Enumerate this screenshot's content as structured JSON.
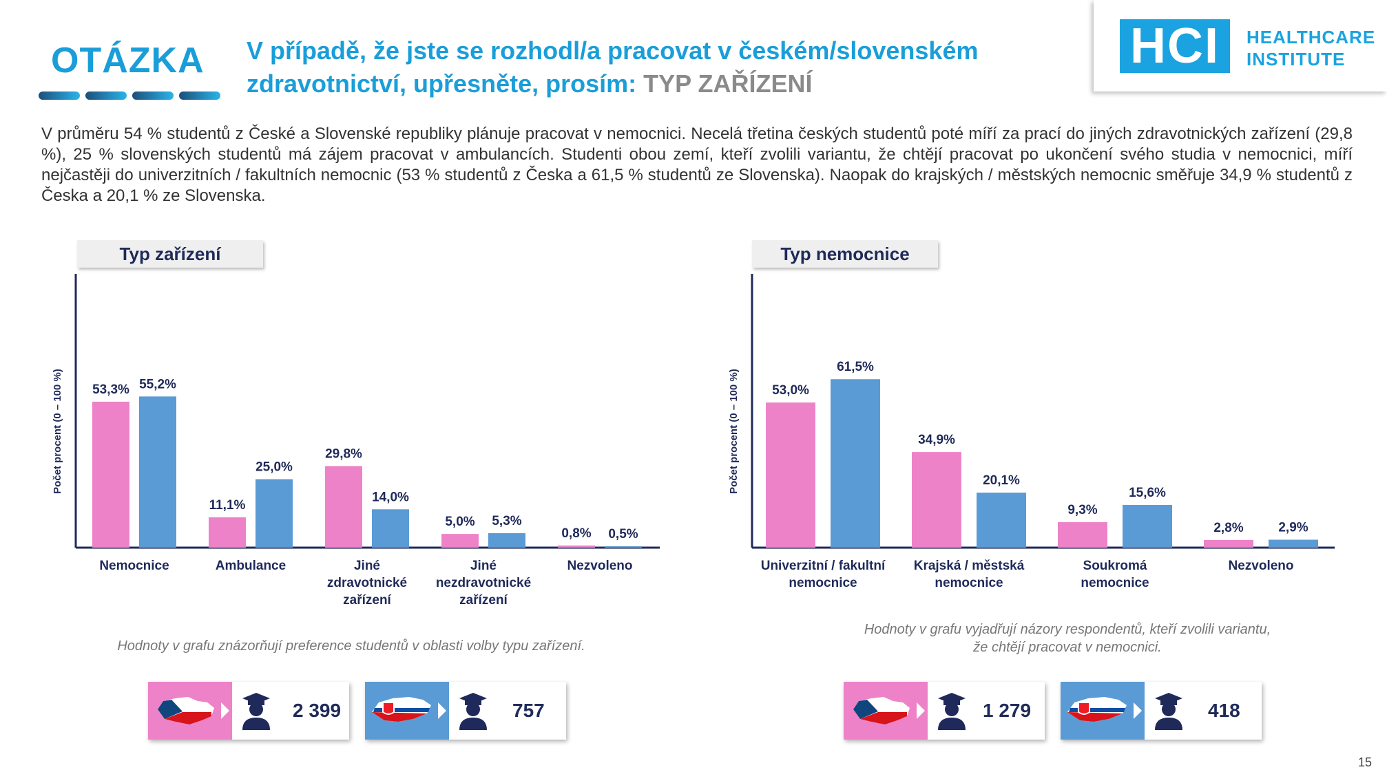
{
  "header": {
    "section_label": "OTÁZKA",
    "question_main": "V případě, že jste se rozhodl/a pracovat v českém/slovenském zdravotnictví, upřesněte, prosím:",
    "question_highlight": "TYP ZAŘÍZENÍ"
  },
  "logo": {
    "mark": "HCI",
    "line1": "HEALTHCARE",
    "line2": "INSTITUTE"
  },
  "intro": "V průměru 54 % studentů z České a Slovenské republiky plánuje pracovat v nemocnici. Necelá třetina českých studentů poté míří za prací do jiných zdravotnických zařízení (29,8 %), 25 % slovenských studentů má zájem pracovat v ambulancích. Studenti obou zemí, kteří zvolili variantu, že chtějí pracovat po ukončení svého studia v nemocnici, míří nejčastěji do univerzitních / fakultních nemocnic (53 % studentů z Česka a 61,5 % studentů ze Slovenska). Naopak do krajských / městských nemocnic směřuje 34,9 % studentů z Česka a 20,1 % ze Slovenska.",
  "colors": {
    "cz": "#ee82c8",
    "sk": "#5b9bd5",
    "axis": "#1f2a5a",
    "accent": "#1a9ed9"
  },
  "chart_data": [
    {
      "type": "bar",
      "title": "Typ zařízení",
      "ylabel": "Počet procent  (0 – 100 %)",
      "ylim": [
        0,
        100
      ],
      "categories": [
        [
          "Nemocnice"
        ],
        [
          "Ambulance"
        ],
        [
          "Jiné",
          "zdravotnické",
          "zařízení"
        ],
        [
          "Jiné",
          "nezdravotnické",
          "zařízení"
        ],
        [
          "Nezvoleno"
        ]
      ],
      "series": [
        {
          "values": [
            53.3,
            11.1,
            29.8,
            5.0,
            0.8
          ],
          "labels": [
            "53,3%",
            "11,1%",
            "29,8%",
            "5,0%",
            "0,8%"
          ]
        },
        {
          "values": [
            55.2,
            25.0,
            14.0,
            5.3,
            0.5
          ],
          "labels": [
            "55,2%",
            "25,0%",
            "14,0%",
            "5,3%",
            "0,5%"
          ]
        }
      ],
      "note": [
        "Hodnoty v grafu znázorňují preference studentů v oblasti volby typu zařízení."
      ],
      "counts": [
        "2 399",
        "757"
      ]
    },
    {
      "type": "bar",
      "title": "Typ nemocnice",
      "ylabel": "Počet procent  (0 – 100 %)",
      "ylim": [
        0,
        100
      ],
      "categories": [
        [
          "Univerzitní / fakultní",
          "nemocnice"
        ],
        [
          "Krajská / městská",
          "nemocnice"
        ],
        [
          "Soukromá",
          "nemocnice"
        ],
        [
          "Nezvoleno"
        ]
      ],
      "series": [
        {
          "values": [
            53.0,
            34.9,
            9.3,
            2.8
          ],
          "labels": [
            "53,0%",
            "34,9%",
            "9,3%",
            "2,8%"
          ]
        },
        {
          "values": [
            61.5,
            20.1,
            15.6,
            2.9
          ],
          "labels": [
            "61,5%",
            "20,1%",
            "15,6%",
            "2,9%"
          ]
        }
      ],
      "note": [
        "Hodnoty v grafu vyjadřují názory respondentů, kteří zvolili variantu,",
        "že chtějí pracovat v nemocnici."
      ],
      "counts": [
        "1 279",
        "418"
      ]
    }
  ],
  "page_number": "15"
}
